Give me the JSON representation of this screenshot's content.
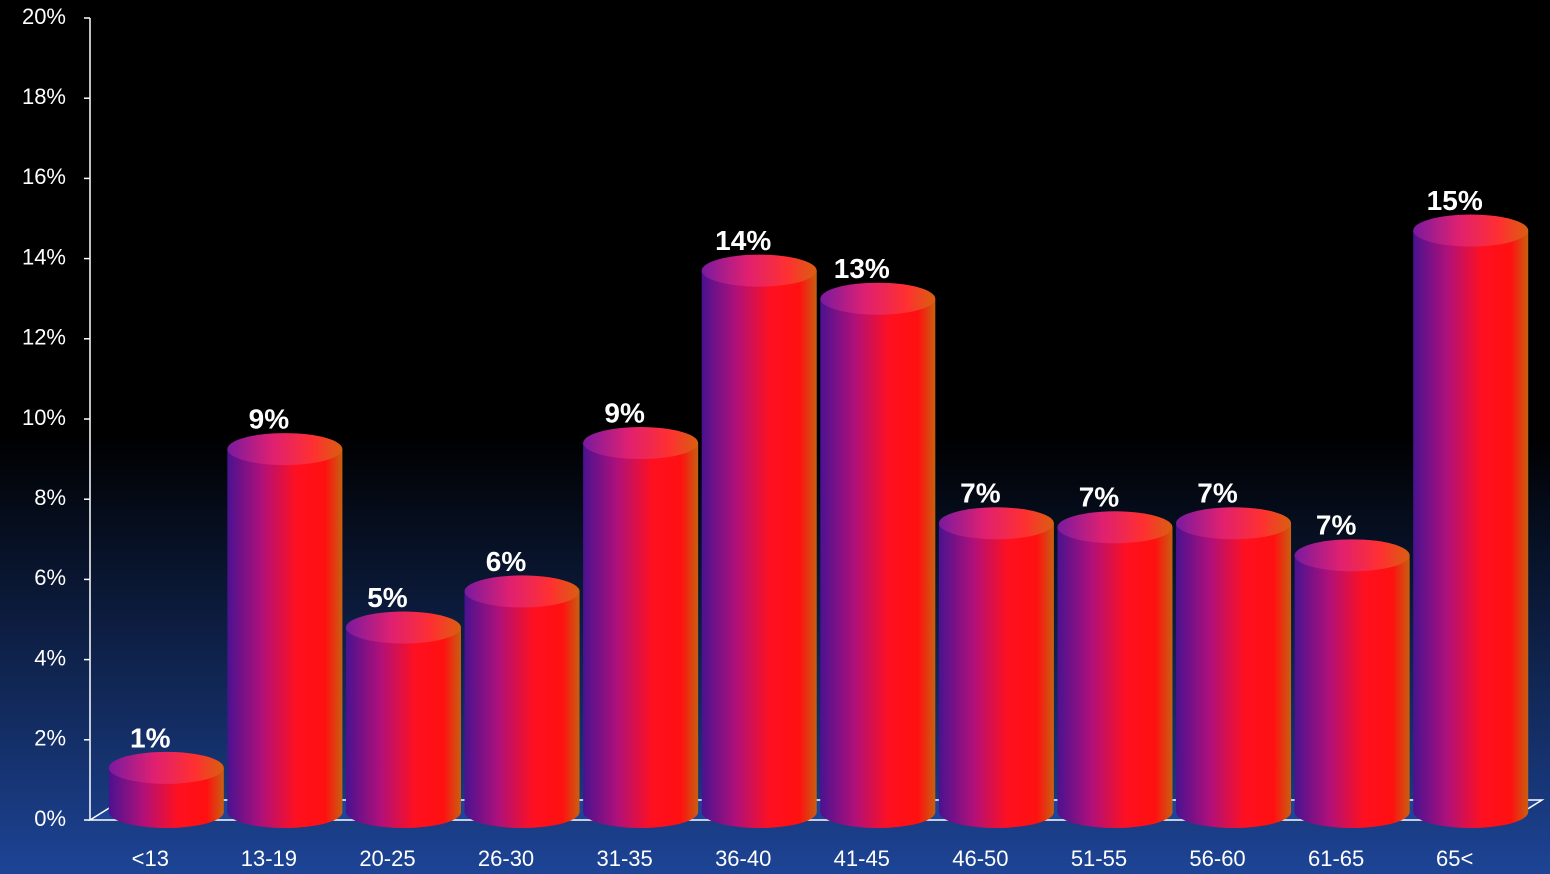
{
  "chart_data": {
    "type": "bar",
    "categories": [
      "<13",
      "13-19",
      "20-25",
      "26-30",
      "31-35",
      "36-40",
      "41-45",
      "46-50",
      "51-55",
      "56-60",
      "61-65",
      "65<"
    ],
    "values": [
      1.3,
      9.25,
      4.8,
      5.7,
      9.4,
      13.7,
      13.0,
      7.4,
      7.3,
      7.4,
      6.6,
      14.7
    ],
    "value_labels": [
      "1%",
      "9%",
      "5%",
      "6%",
      "9%",
      "14%",
      "13%",
      "7%",
      "7%",
      "7%",
      "7%",
      "15%"
    ],
    "color": "#ff1010",
    "ylim": [
      0,
      20
    ],
    "yticks": [
      {
        "value": 0,
        "label": "0%"
      },
      {
        "value": 2,
        "label": "2%"
      },
      {
        "value": 4,
        "label": "4%"
      },
      {
        "value": 6,
        "label": "6%"
      },
      {
        "value": 8,
        "label": "8%"
      },
      {
        "value": 10,
        "label": "10%"
      },
      {
        "value": 12,
        "label": "12%"
      },
      {
        "value": 14,
        "label": "14%"
      },
      {
        "value": 16,
        "label": "16%"
      },
      {
        "value": 18,
        "label": "18%"
      },
      {
        "value": 20,
        "label": "20%"
      }
    ]
  }
}
